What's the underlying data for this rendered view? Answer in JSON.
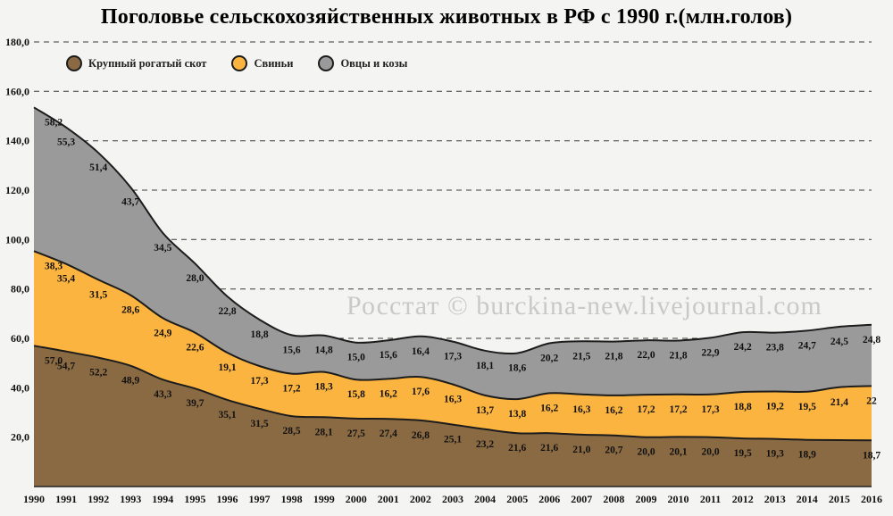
{
  "chart_data": {
    "type": "area",
    "stacked": true,
    "title": "Поголовье сельскохозяйственных животных в РФ с 1990 г.(млн.голов)",
    "watermark": "Росстат © burckina-new.livejournal.com",
    "legend_position": "top-left",
    "grid": "horizontal-dashed",
    "ylim": [
      0,
      180
    ],
    "yticks": [
      {
        "v": 20,
        "label": "20,0"
      },
      {
        "v": 40,
        "label": "40,0"
      },
      {
        "v": 60,
        "label": "60,0"
      },
      {
        "v": 80,
        "label": "80,0"
      },
      {
        "v": 100,
        "label": "100,0"
      },
      {
        "v": 120,
        "label": "120,0"
      },
      {
        "v": 140,
        "label": "140,0"
      },
      {
        "v": 160,
        "label": "160,0"
      },
      {
        "v": 180,
        "label": "180,0"
      }
    ],
    "categories": [
      "1990",
      "1991",
      "1992",
      "1993",
      "1994",
      "1995",
      "1996",
      "1997",
      "1998",
      "1999",
      "2000",
      "2001",
      "2002",
      "2003",
      "2004",
      "2005",
      "2006",
      "2007",
      "2008",
      "2009",
      "2010",
      "2011",
      "2012",
      "2013",
      "2014",
      "2015",
      "2016"
    ],
    "series": [
      {
        "name": "Крупный рогатый скот",
        "color": "#8a6a43",
        "values": [
          57.0,
          54.7,
          52.2,
          48.9,
          43.3,
          39.7,
          35.1,
          31.5,
          28.5,
          28.1,
          27.5,
          27.4,
          26.8,
          25.1,
          23.2,
          21.6,
          21.6,
          21.0,
          20.7,
          20.0,
          20.1,
          20.0,
          19.5,
          19.3,
          18.9,
          18.8,
          18.7
        ],
        "labels": [
          "57,0",
          "54,7",
          "52,2",
          "48,9",
          "43,3",
          "39,7",
          "35,1",
          "31,5",
          "28,5",
          "28,1",
          "27,5",
          "27,4",
          "26,8",
          "25,1",
          "23,2",
          "21,6",
          "21,6",
          "21,0",
          "20,7",
          "20,0",
          "20,1",
          "20,0",
          "19,5",
          "19,3",
          "18,9",
          "",
          "18,7"
        ]
      },
      {
        "name": "Свиньи",
        "color": "#fbb440",
        "values": [
          38.3,
          35.4,
          31.5,
          28.6,
          24.9,
          22.6,
          19.1,
          17.3,
          17.2,
          18.3,
          15.8,
          16.2,
          17.6,
          16.3,
          13.7,
          13.8,
          16.2,
          16.3,
          16.2,
          17.2,
          17.2,
          17.3,
          18.8,
          19.2,
          19.5,
          21.4,
          22.0
        ],
        "labels": [
          "38,3",
          "35,4",
          "31,5",
          "28,6",
          "24,9",
          "22,6",
          "19,1",
          "17,3",
          "17,2",
          "18,3",
          "15,8",
          "16,2",
          "17,6",
          "16,3",
          "13,7",
          "13,8",
          "16,2",
          "16,3",
          "16,2",
          "17,2",
          "17,2",
          "17,3",
          "18,8",
          "19,2",
          "19,5",
          "21,4",
          "22"
        ]
      },
      {
        "name": "Овцы и козы",
        "color": "#9a9a9a",
        "values": [
          58.2,
          55.3,
          51.4,
          43.7,
          34.5,
          28.0,
          22.8,
          18.8,
          15.6,
          14.8,
          15.0,
          15.6,
          16.4,
          17.3,
          18.1,
          18.6,
          20.2,
          21.5,
          21.8,
          22.0,
          21.8,
          22.9,
          24.2,
          23.8,
          24.7,
          24.5,
          24.8
        ],
        "labels": [
          "58,2",
          "55,3",
          "51,4",
          "43,7",
          "34,5",
          "28,0",
          "22,8",
          "18,8",
          "15,6",
          "14,8",
          "15,0",
          "15,6",
          "16,4",
          "17,3",
          "18,1",
          "18,6",
          "20,2",
          "21,5",
          "21,8",
          "22,0",
          "21,8",
          "22,9",
          "24,2",
          "23,8",
          "24,7",
          "24,5",
          "24,8"
        ]
      }
    ],
    "colors": {
      "grid": "#3a3a3a",
      "line_stroke": "#1c1c1c",
      "label_text": "#101010",
      "watermark_text": "#c9c9c9"
    }
  }
}
